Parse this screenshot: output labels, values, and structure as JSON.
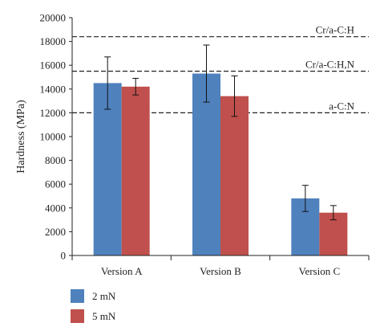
{
  "chart_data": {
    "type": "bar",
    "title": "",
    "xlabel": "",
    "ylabel": "Hardness (MPa)",
    "ylim": [
      0,
      20000
    ],
    "yticks": [
      0,
      2000,
      4000,
      6000,
      8000,
      10000,
      12000,
      14000,
      16000,
      18000,
      20000
    ],
    "categories": [
      "Version A",
      "Version B",
      "Version C"
    ],
    "grid": false,
    "legend_position": "bottom-left",
    "series": [
      {
        "name": "2 mN",
        "color": "#4f81bd",
        "values": [
          14500,
          15300,
          4800
        ],
        "errors": [
          2200,
          2400,
          1100
        ]
      },
      {
        "name": "5 mN",
        "color": "#c0504d",
        "values": [
          14200,
          13400,
          3600
        ],
        "errors": [
          700,
          1700,
          600
        ]
      }
    ],
    "reference_lines": [
      {
        "label": "Cr/a-C:H",
        "value": 18400
      },
      {
        "label": "Cr/a-C:H,N",
        "value": 15500
      },
      {
        "label": "a-C:N",
        "value": 12000
      }
    ]
  }
}
